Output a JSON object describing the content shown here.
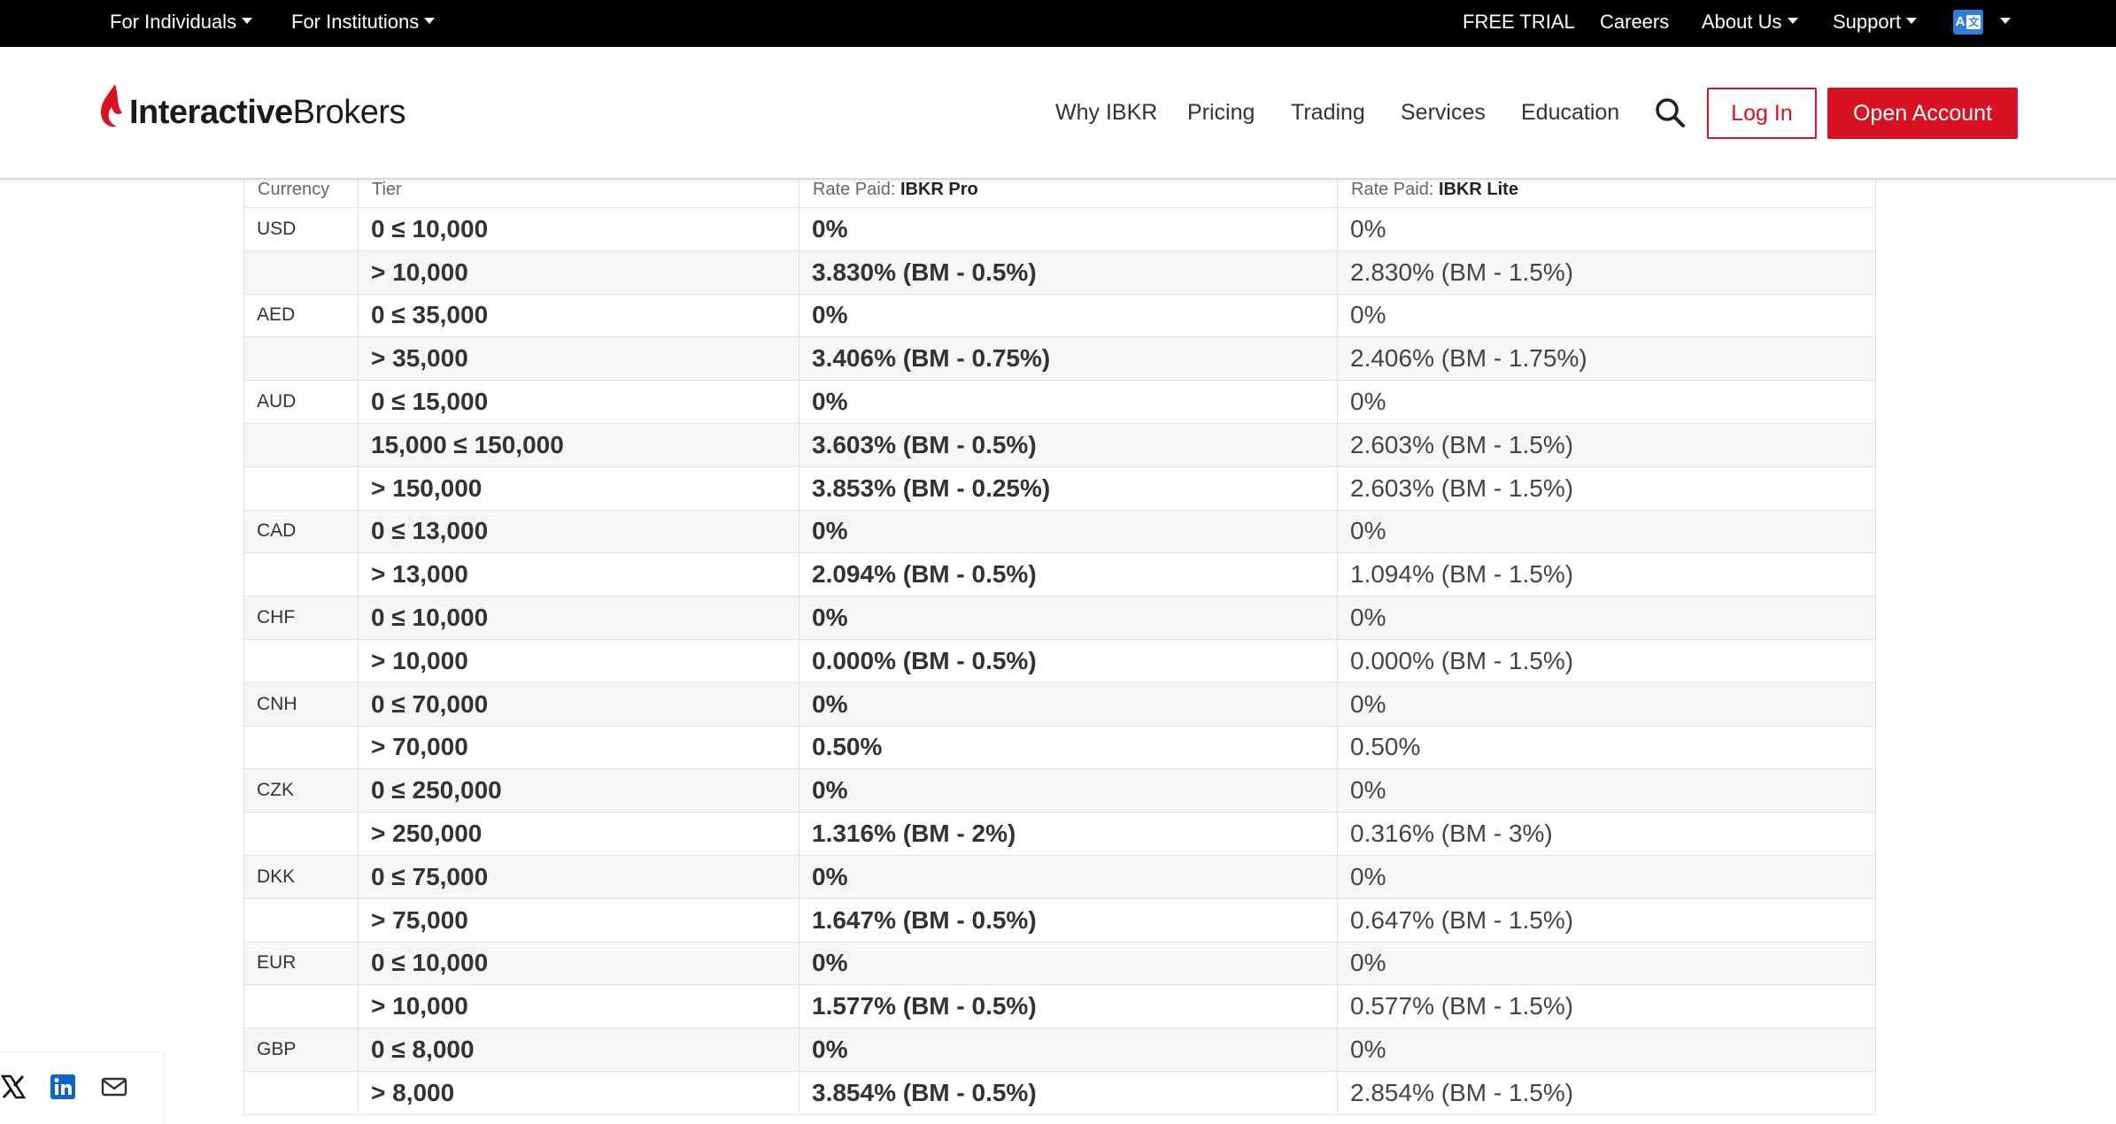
{
  "topbar": {
    "for_individuals": "For Individuals",
    "for_institutions": "For Institutions",
    "free_trial": "FREE TRIAL",
    "careers": "Careers",
    "about_us": "About Us",
    "support": "Support"
  },
  "header": {
    "logo_bold": "Interactive",
    "logo_regular": "Brokers",
    "nav": [
      "Why IBKR",
      "Pricing",
      "Trading",
      "Services",
      "Education"
    ],
    "login": "Log In",
    "open_account": "Open Account"
  },
  "table": {
    "headers": {
      "currency": "Currency",
      "tier": "Tier",
      "pro_prefix": "Rate Paid: ",
      "pro_bold": "IBKR Pro",
      "lite_prefix": "Rate Paid: ",
      "lite_bold": "IBKR Lite"
    },
    "rows": [
      {
        "currency": "USD",
        "tier": "0 ≤ 10,000",
        "pro": "0%",
        "lite": "0%"
      },
      {
        "currency": "",
        "tier": "> 10,000",
        "pro": "3.830% (BM - 0.5%)",
        "lite": "2.830% (BM - 1.5%)"
      },
      {
        "currency": "AED",
        "tier": "0 ≤ 35,000",
        "pro": "0%",
        "lite": "0%"
      },
      {
        "currency": "",
        "tier": "> 35,000",
        "pro": "3.406% (BM - 0.75%)",
        "lite": "2.406% (BM - 1.75%)"
      },
      {
        "currency": "AUD",
        "tier": "0 ≤ 15,000",
        "pro": "0%",
        "lite": "0%"
      },
      {
        "currency": "",
        "tier": "15,000 ≤ 150,000",
        "pro": "3.603% (BM - 0.5%)",
        "lite": "2.603% (BM - 1.5%)"
      },
      {
        "currency": "",
        "tier": "> 150,000",
        "pro": "3.853% (BM - 0.25%)",
        "lite": "2.603% (BM - 1.5%)"
      },
      {
        "currency": "CAD",
        "tier": "0 ≤ 13,000",
        "pro": "0%",
        "lite": "0%"
      },
      {
        "currency": "",
        "tier": "> 13,000",
        "pro": "2.094% (BM - 0.5%)",
        "lite": "1.094% (BM - 1.5%)"
      },
      {
        "currency": "CHF",
        "tier": "0 ≤ 10,000",
        "pro": "0%",
        "lite": "0%"
      },
      {
        "currency": "",
        "tier": "> 10,000",
        "pro": "0.000% (BM - 0.5%)",
        "lite": "0.000% (BM - 1.5%)"
      },
      {
        "currency": "CNH",
        "tier": "0 ≤ 70,000",
        "pro": "0%",
        "lite": "0%"
      },
      {
        "currency": "",
        "tier": "> 70,000",
        "pro": "0.50%",
        "lite": "0.50%"
      },
      {
        "currency": "CZK",
        "tier": "0 ≤ 250,000",
        "pro": "0%",
        "lite": "0%"
      },
      {
        "currency": "",
        "tier": "> 250,000",
        "pro": "1.316% (BM - 2%)",
        "lite": "0.316% (BM - 3%)"
      },
      {
        "currency": "DKK",
        "tier": "0 ≤ 75,000",
        "pro": "0%",
        "lite": "0%"
      },
      {
        "currency": "",
        "tier": "> 75,000",
        "pro": "1.647% (BM - 0.5%)",
        "lite": "0.647% (BM - 1.5%)"
      },
      {
        "currency": "EUR",
        "tier": "0 ≤ 10,000",
        "pro": "0%",
        "lite": "0%"
      },
      {
        "currency": "",
        "tier": "> 10,000",
        "pro": "1.577% (BM - 0.5%)",
        "lite": "0.577% (BM - 1.5%)"
      },
      {
        "currency": "GBP",
        "tier": "0 ≤ 8,000",
        "pro": "0%",
        "lite": "0%"
      },
      {
        "currency": "",
        "tier": "> 8,000",
        "pro": "3.854% (BM - 0.5%)",
        "lite": "2.854% (BM - 1.5%)"
      }
    ]
  },
  "colors": {
    "brand_red": "#d81222",
    "topbar_bg": "#000000",
    "row_alt": "#f6f6f6"
  },
  "share_icons": [
    "x-icon",
    "linkedin-icon",
    "mail-icon"
  ]
}
